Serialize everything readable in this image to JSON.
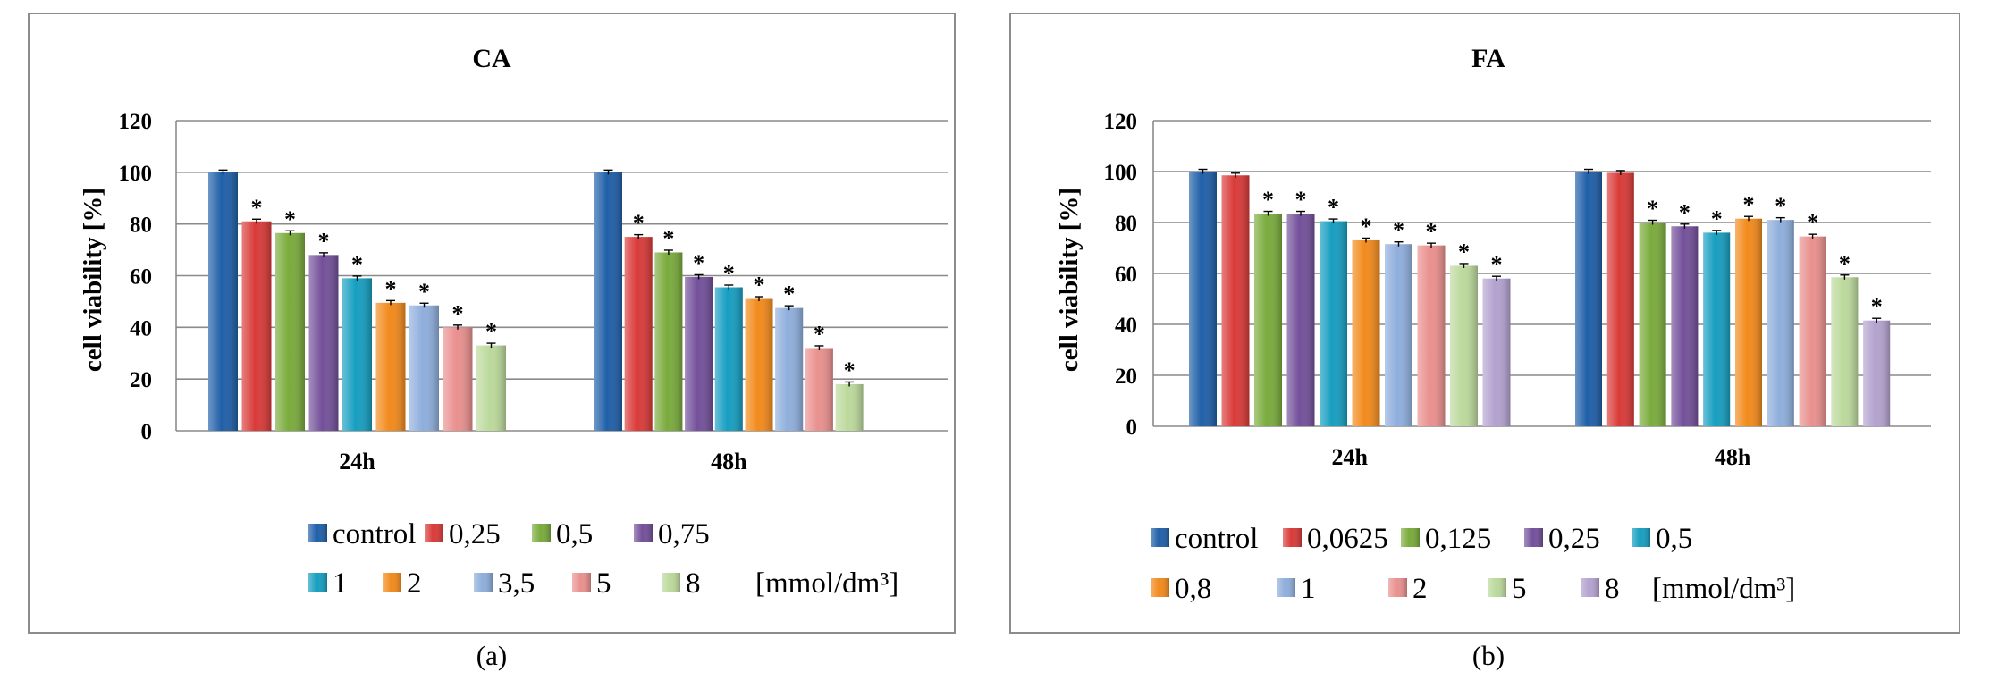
{
  "chart_data": [
    {
      "type": "bar",
      "title": "CA",
      "panel_label": "(a)",
      "xlabel": "",
      "ylabel": "cell viability [%]",
      "ylim": [
        0,
        120
      ],
      "yticks": [
        0,
        20,
        40,
        60,
        80,
        100,
        120
      ],
      "categories": [
        "24h",
        "48h"
      ],
      "unit_label": "[mmol/dm³]",
      "series": [
        {
          "name": "control",
          "color": "#1f5fa8",
          "values": [
            100,
            100
          ],
          "significant": [
            false,
            false
          ]
        },
        {
          "name": "0,25",
          "color": "#d93a38",
          "values": [
            81,
            75
          ],
          "significant": [
            true,
            true
          ]
        },
        {
          "name": "0,5",
          "color": "#7aab3c",
          "values": [
            76.5,
            69
          ],
          "significant": [
            true,
            true
          ]
        },
        {
          "name": "0,75",
          "color": "#73509a",
          "values": [
            68,
            59.5
          ],
          "significant": [
            true,
            true
          ]
        },
        {
          "name": "1",
          "color": "#169ec0",
          "values": [
            59,
            55.5
          ],
          "significant": [
            true,
            true
          ]
        },
        {
          "name": "2",
          "color": "#f28a1c",
          "values": [
            49.5,
            51
          ],
          "significant": [
            true,
            true
          ]
        },
        {
          "name": "3,5",
          "color": "#8eaedc",
          "values": [
            48.5,
            47.5
          ],
          "significant": [
            true,
            true
          ]
        },
        {
          "name": "5",
          "color": "#e9908e",
          "values": [
            40,
            32
          ],
          "significant": [
            true,
            true
          ]
        },
        {
          "name": "8",
          "color": "#bcd99c",
          "values": [
            33,
            18
          ],
          "significant": [
            true,
            true
          ]
        }
      ]
    },
    {
      "type": "bar",
      "title": "FA",
      "panel_label": "(b)",
      "xlabel": "",
      "ylabel": "cell viability [%]",
      "ylim": [
        0,
        120
      ],
      "yticks": [
        0,
        20,
        40,
        60,
        80,
        100,
        120
      ],
      "categories": [
        "24h",
        "48h"
      ],
      "unit_label": "[mmol/dm³]",
      "series": [
        {
          "name": "control",
          "color": "#1f5fa8",
          "values": [
            100,
            100
          ],
          "significant": [
            false,
            false
          ]
        },
        {
          "name": "0,0625",
          "color": "#d93a38",
          "values": [
            98.5,
            99.5
          ],
          "significant": [
            false,
            false
          ]
        },
        {
          "name": "0,125",
          "color": "#7aab3c",
          "values": [
            83.5,
            80
          ],
          "significant": [
            true,
            true
          ]
        },
        {
          "name": "0,25",
          "color": "#73509a",
          "values": [
            83.5,
            78.5
          ],
          "significant": [
            true,
            true
          ]
        },
        {
          "name": "0,5",
          "color": "#169ec0",
          "values": [
            80.5,
            76
          ],
          "significant": [
            true,
            true
          ]
        },
        {
          "name": "0,8",
          "color": "#f28a1c",
          "values": [
            73,
            81.5
          ],
          "significant": [
            true,
            true
          ]
        },
        {
          "name": "1",
          "color": "#8eaedc",
          "values": [
            71.5,
            81
          ],
          "significant": [
            true,
            true
          ]
        },
        {
          "name": "2",
          "color": "#e9908e",
          "values": [
            71,
            74.5
          ],
          "significant": [
            true,
            true
          ]
        },
        {
          "name": "5",
          "color": "#bcd99c",
          "values": [
            63,
            58.5
          ],
          "significant": [
            true,
            true
          ]
        },
        {
          "name": "8",
          "color": "#b3a2cf",
          "values": [
            58,
            41.5
          ],
          "significant": [
            true,
            true
          ]
        }
      ]
    }
  ]
}
